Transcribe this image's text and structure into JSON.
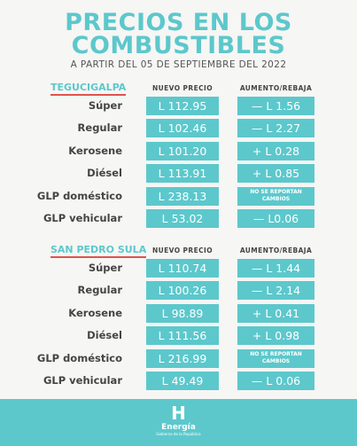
{
  "header": {
    "title_line1": "PRECIOS EN LOS",
    "title_line2": "COMBUSTIBLES",
    "subtitle": "A PARTIR DEL 05 DE SEPTIEMBRE DEL 2022"
  },
  "sections": [
    {
      "city": "TEGUCIGALPA",
      "col_price": "NUEVO PRECIO",
      "col_change": "AUMENTO/REBAJA",
      "rows": [
        {
          "fuel": "Súper",
          "price": "L 112.95",
          "change": "— L 1.56"
        },
        {
          "fuel": "Regular",
          "price": "L 102.46",
          "change": "— L 2.27"
        },
        {
          "fuel": "Kerosene",
          "price": "L 101.20",
          "change": "+ L 0.28"
        },
        {
          "fuel": "Diésel",
          "price": "L 113.91",
          "change": "+ L 0.85"
        },
        {
          "fuel": "GLP doméstico",
          "price": "L 238.13",
          "change": "NO SE REPORTAN CAMBIOS"
        },
        {
          "fuel": "GLP vehicular",
          "price": "L 53.02",
          "change": "— L0.06"
        }
      ]
    },
    {
      "city": "SAN PEDRO SULA",
      "col_price": "NUEVO PRECIO",
      "col_change": "AUMENTO/REBAJA",
      "rows": [
        {
          "fuel": "Súper",
          "price": "L 110.74",
          "change": "— L 1.44"
        },
        {
          "fuel": "Regular",
          "price": "L 100.26",
          "change": "— L 2.14"
        },
        {
          "fuel": "Kerosene",
          "price": "L 98.89",
          "change": "+ L 0.41"
        },
        {
          "fuel": "Diésel",
          "price": "L 111.56",
          "change": "+ L 0.98"
        },
        {
          "fuel": "GLP doméstico",
          "price": "L 216.99",
          "change": "NO SE REPORTAN CAMBIOS"
        },
        {
          "fuel": "GLP vehicular",
          "price": "L 49.49",
          "change": "— L 0.06"
        }
      ]
    }
  ],
  "footer": {
    "logo": "H",
    "brand": "Energía",
    "tagline": "Gobierno de la República"
  }
}
